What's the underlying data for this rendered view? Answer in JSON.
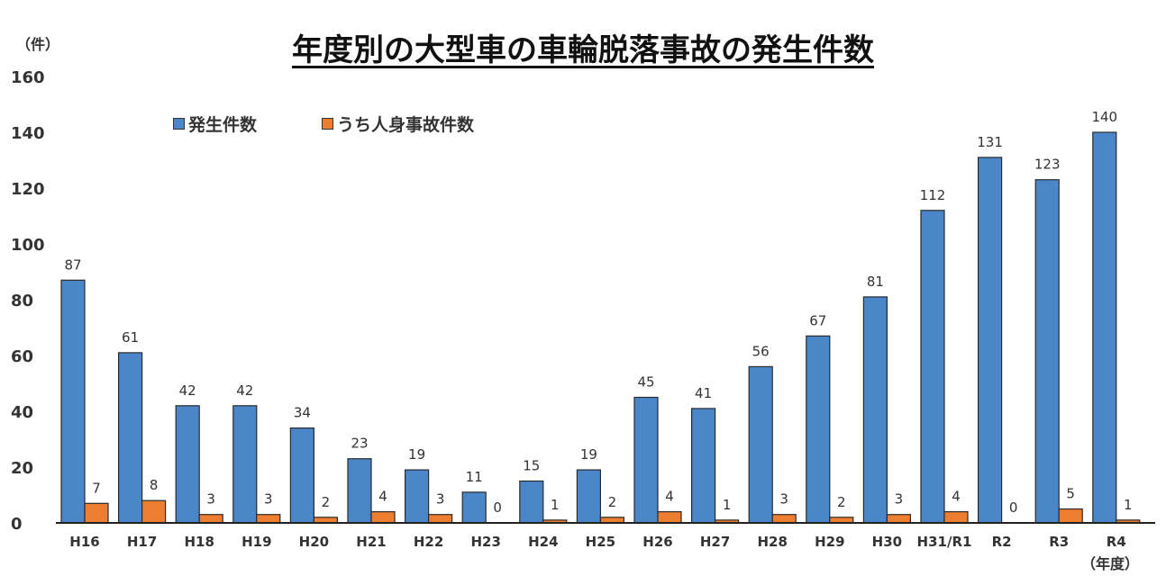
{
  "chart_data": {
    "type": "bar",
    "title": "年度別の大型車の車輪脱落事故の発生件数",
    "ylabel": "（件）",
    "xlabel": "（年度）",
    "ylim": [
      0,
      160
    ],
    "yticks": [
      0,
      20,
      40,
      60,
      80,
      100,
      120,
      140,
      160
    ],
    "grid": false,
    "legend_position": "top-left",
    "categories": [
      "H16",
      "H17",
      "H18",
      "H19",
      "H20",
      "H21",
      "H22",
      "H23",
      "H24",
      "H25",
      "H26",
      "H27",
      "H28",
      "H29",
      "H30",
      "H31/R1",
      "R2",
      "R3",
      "R4"
    ],
    "series": [
      {
        "name": "発生件数",
        "color": "#4a86c8",
        "values": [
          87,
          61,
          42,
          42,
          34,
          23,
          19,
          11,
          15,
          19,
          45,
          41,
          56,
          67,
          81,
          112,
          131,
          123,
          140
        ]
      },
      {
        "name": "うち人身事故件数",
        "color": "#ed7d31",
        "values": [
          7,
          8,
          3,
          3,
          2,
          4,
          3,
          0,
          1,
          2,
          4,
          1,
          3,
          2,
          3,
          4,
          0,
          5,
          1
        ]
      }
    ]
  }
}
